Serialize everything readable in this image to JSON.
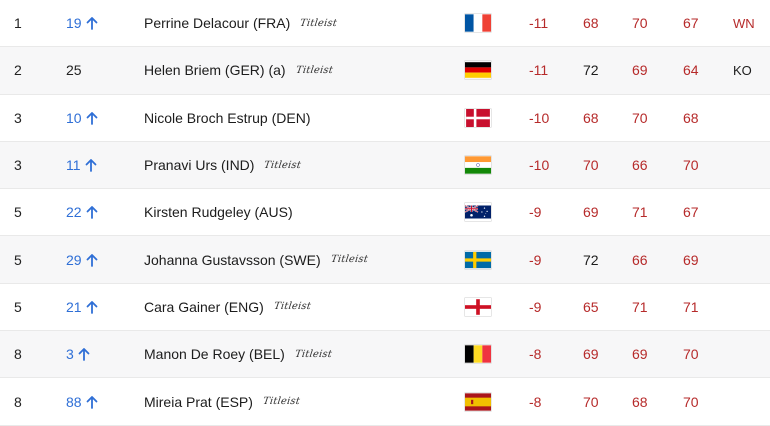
{
  "leaderboard": {
    "rows": [
      {
        "pos": "1",
        "move": "19",
        "dir": "up",
        "name": "Perrine Delacour (FRA)",
        "brand": "Titleist",
        "flag": "FRA",
        "to_par": "-11",
        "r1": "68",
        "r2": "70",
        "r3": "67",
        "status": "WN",
        "status_color": "#b62a2a"
      },
      {
        "pos": "2",
        "move": "25",
        "dir": "none",
        "name": "Helen Briem (GER) (a)",
        "brand": "Titleist",
        "flag": "GER",
        "to_par": "-11",
        "r1": "72",
        "r2": "69",
        "r3": "64",
        "status": "KO",
        "status_color": "#1c1c1c"
      },
      {
        "pos": "3",
        "move": "10",
        "dir": "up",
        "name": "Nicole Broch Estrup (DEN)",
        "brand": "",
        "flag": "DEN",
        "to_par": "-10",
        "r1": "68",
        "r2": "70",
        "r3": "68",
        "status": "",
        "status_color": ""
      },
      {
        "pos": "3",
        "move": "11",
        "dir": "up",
        "name": "Pranavi Urs (IND)",
        "brand": "Titleist",
        "flag": "IND",
        "to_par": "-10",
        "r1": "70",
        "r2": "66",
        "r3": "70",
        "status": "",
        "status_color": ""
      },
      {
        "pos": "5",
        "move": "22",
        "dir": "up",
        "name": "Kirsten Rudgeley (AUS)",
        "brand": "",
        "flag": "AUS",
        "to_par": "-9",
        "r1": "69",
        "r2": "71",
        "r3": "67",
        "status": "",
        "status_color": ""
      },
      {
        "pos": "5",
        "move": "29",
        "dir": "up",
        "name": "Johanna Gustavsson (SWE)",
        "brand": "Titleist",
        "flag": "SWE",
        "to_par": "-9",
        "r1": "72",
        "r2": "66",
        "r3": "69",
        "status": "",
        "status_color": ""
      },
      {
        "pos": "5",
        "move": "21",
        "dir": "up",
        "name": "Cara Gainer (ENG)",
        "brand": "Titleist",
        "flag": "ENG",
        "to_par": "-9",
        "r1": "65",
        "r2": "71",
        "r3": "71",
        "status": "",
        "status_color": ""
      },
      {
        "pos": "8",
        "move": "3",
        "dir": "up",
        "name": "Manon De Roey (BEL)",
        "brand": "Titleist",
        "flag": "BEL",
        "to_par": "-8",
        "r1": "69",
        "r2": "69",
        "r3": "70",
        "status": "",
        "status_color": ""
      },
      {
        "pos": "8",
        "move": "88",
        "dir": "up",
        "name": "Mireia Prat (ESP)",
        "brand": "Titleist",
        "flag": "ESP",
        "to_par": "-8",
        "r1": "70",
        "r2": "68",
        "r3": "70",
        "status": "",
        "status_color": ""
      }
    ],
    "colors": {
      "up_arrow": "#2f6fd6",
      "under_par": "#b62a2a",
      "even_par": "#1c1c1c"
    }
  }
}
